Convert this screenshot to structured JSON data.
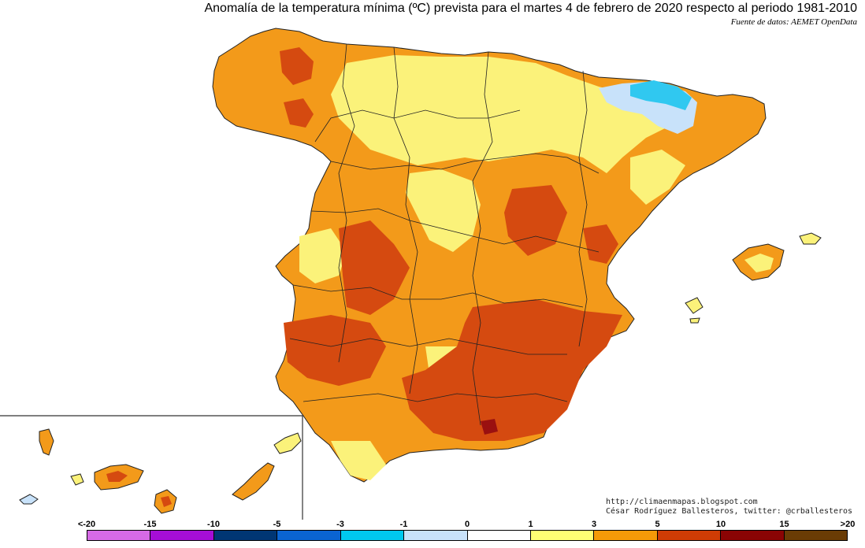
{
  "title": "Anomalía de la temperatura mínima (ºC) prevista para el martes 4 de febrero de 2020 respecto al periodo 1981-2010",
  "source": "Fuente de datos: AEMET OpenData",
  "credits": {
    "blog": "http://climaenmapas.blogspot.com",
    "author": "César Rodríguez Ballesteros, twitter: @crballesteros"
  },
  "legend": {
    "labels": [
      "<-20",
      "-15",
      "-10",
      "-5",
      "-3",
      "-1",
      "0",
      "1",
      "3",
      "5",
      "10",
      "15",
      ">20"
    ],
    "colors": [
      "#d66ae6",
      "#a50ed6",
      "#003674",
      "#0a64d2",
      "#00c8ee",
      "#c8e2fa",
      "#ffffff",
      "#ffff74",
      "#f59a08",
      "#cf3c05",
      "#8a0404",
      "#6a3c05"
    ]
  },
  "map": {
    "region": "Península Ibérica, Baleares y Canarias",
    "dominant_anomaly_colors": {
      "warm_light": "#fbf27a",
      "warm_mid": "#f39a1a",
      "warm_high": "#d54a10",
      "warm_peak": "#9a1010",
      "cold_light": "#c8e2fa",
      "cold_mid": "#30c8f0"
    }
  }
}
